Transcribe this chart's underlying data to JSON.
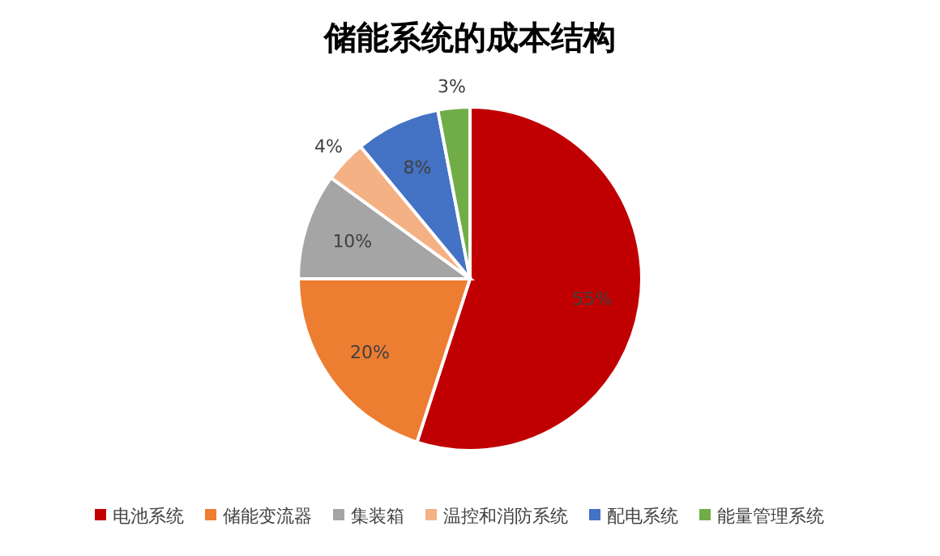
{
  "chart_data": {
    "type": "pie",
    "title": "储能系统的成本结构",
    "categories": [
      "电池系统",
      "储能变流器",
      "集装箱",
      "温控和消防系统",
      "配电系统",
      "能量管理系统"
    ],
    "values": [
      55,
      20,
      10,
      4,
      8,
      3
    ],
    "colors": [
      "#c00000",
      "#ed7d31",
      "#a5a5a5",
      "#f4b183",
      "#4472c4",
      "#70ad47"
    ],
    "value_labels": [
      "55%",
      "20%",
      "10%",
      "4%",
      "8%",
      "3%"
    ],
    "legend": "bottom"
  }
}
